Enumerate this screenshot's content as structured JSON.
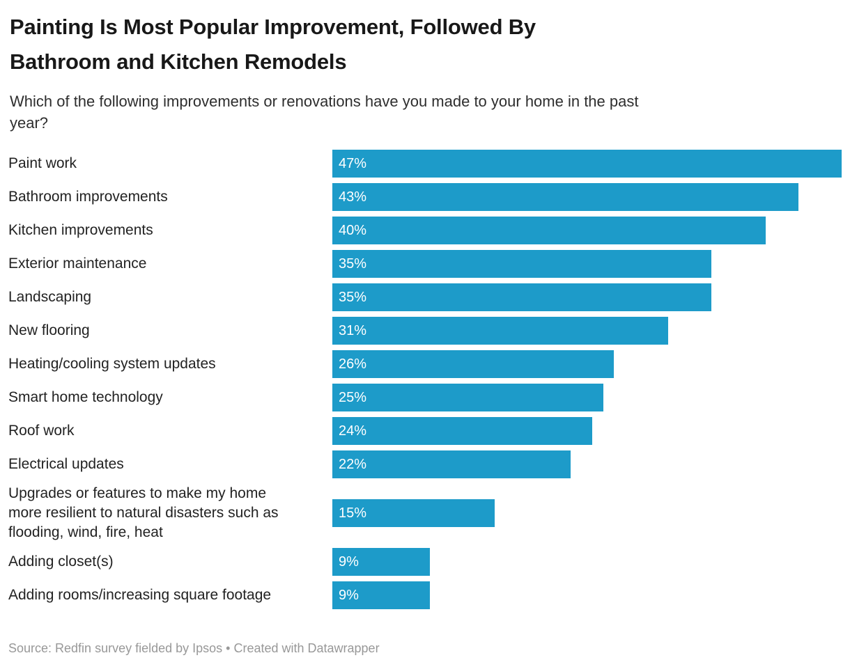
{
  "header": {
    "title_line1": "Painting Is Most Popular Improvement, Followed By",
    "title_line2": "Bathroom and Kitchen Remodels",
    "subtitle_line1": "Which of the following improvements or renovations have you made to your home in the past",
    "subtitle_line2": "year?"
  },
  "chart_data": {
    "type": "bar",
    "orientation": "horizontal",
    "title": "Painting Is Most Popular Improvement, Followed By Bathroom and Kitchen Remodels",
    "subtitle": "Which of the following improvements or renovations have you made to your home in the past year?",
    "categories": [
      "Paint work",
      "Bathroom improvements",
      "Kitchen improvements",
      "Exterior maintenance",
      "Landscaping",
      "New flooring",
      "Heating/cooling system updates",
      "Smart home technology",
      "Roof work",
      "Electrical updates",
      "Upgrades or features to make my home more resilient to natural disasters such as flooding, wind, fire, heat",
      "Adding closet(s)",
      "Adding rooms/increasing square footage"
    ],
    "values": [
      47,
      43,
      40,
      35,
      35,
      31,
      26,
      25,
      24,
      22,
      15,
      9,
      9
    ],
    "value_labels": [
      "47%",
      "43%",
      "40%",
      "35%",
      "35%",
      "31%",
      "26%",
      "25%",
      "24%",
      "22%",
      "15%",
      "9%",
      "9%"
    ],
    "xlim": [
      0,
      47
    ],
    "grid": false,
    "legend": false,
    "bar_color": "#1d9bc9",
    "value_label_color": "#ffffff"
  },
  "footer": {
    "text": "Source: Redfin survey fielded by Ipsos • Created with Datawrapper"
  }
}
